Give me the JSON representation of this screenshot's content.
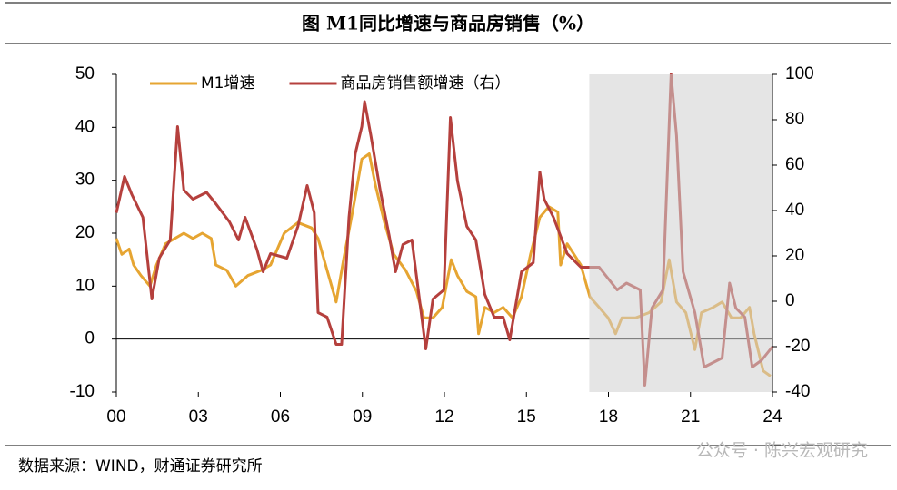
{
  "chart_data": {
    "type": "line",
    "title": "图  M1同比增速与商品房销售（%）",
    "source": "数据来源：WIND，财通证券研究所",
    "watermark": "公众号 · 陈兴宏观研究",
    "xlim": [
      2000,
      2024
    ],
    "xticks": [
      {
        "value": 2000,
        "label": "00"
      },
      {
        "value": 2003,
        "label": "03"
      },
      {
        "value": 2006,
        "label": "06"
      },
      {
        "value": 2009,
        "label": "09"
      },
      {
        "value": 2012,
        "label": "12"
      },
      {
        "value": 2015,
        "label": "15"
      },
      {
        "value": 2018,
        "label": "18"
      },
      {
        "value": 2021,
        "label": "21"
      },
      {
        "value": 2024,
        "label": "24"
      }
    ],
    "ylim": [
      -10,
      50
    ],
    "yticks": [
      -10,
      0,
      10,
      20,
      30,
      40,
      50
    ],
    "y2lim": [
      -40,
      100
    ],
    "y2ticks": [
      -40,
      -20,
      0,
      20,
      40,
      60,
      80,
      100
    ],
    "shaded_x": [
      2017.3,
      2024
    ],
    "legend": "top-left",
    "series": [
      {
        "name": "M1增速",
        "color": "#e6a532",
        "x": [
          2000,
          2000.2,
          2000.47,
          2000.63,
          2000.9,
          2001.23,
          2001.47,
          2001.8,
          2002.14,
          2002.47,
          2002.8,
          2003.14,
          2003.47,
          2003.64,
          2004.04,
          2004.37,
          2004.81,
          2005.31,
          2005.64,
          2006.14,
          2006.64,
          2007.14,
          2007.38,
          2007.71,
          2008.04,
          2008.31,
          2008.71,
          2008.98,
          2009.25,
          2009.48,
          2009.81,
          2010.15,
          2010.58,
          2010.98,
          2011.25,
          2011.58,
          2011.92,
          2012.25,
          2012.48,
          2012.82,
          2013.15,
          2013.25,
          2013.48,
          2013.82,
          2014.15,
          2014.49,
          2014.82,
          2015.15,
          2015.49,
          2015.82,
          2016.15,
          2016.25,
          2016.49,
          2016.99,
          2017.32,
          2017.66,
          2017.99,
          2018.26,
          2018.49,
          2018.99,
          2019.49,
          2019.92,
          2020.22,
          2020.49,
          2020.83,
          2021.16,
          2021.4,
          2021.83,
          2022.16,
          2022.5,
          2022.83,
          2023.16,
          2023.33,
          2023.66,
          2023.93
        ],
        "values": [
          19,
          16,
          17,
          14,
          12,
          10,
          14,
          18,
          19,
          20,
          19,
          20,
          19,
          14,
          13,
          10,
          12,
          13,
          14,
          20,
          22,
          21,
          19,
          13,
          7,
          15,
          26,
          34,
          35,
          29,
          22,
          16,
          13,
          9,
          4,
          4,
          6,
          15,
          12,
          9,
          8,
          1,
          6,
          5,
          6,
          4,
          8,
          16,
          23,
          25,
          24,
          14,
          18,
          14,
          8,
          6,
          4,
          1,
          4,
          4,
          5,
          7,
          15,
          7,
          5,
          -2,
          5,
          6,
          7,
          4,
          4,
          6,
          1,
          -6,
          -7
        ]
      },
      {
        "name": "商品房销售额增速（右）",
        "color": "#b5403d",
        "axis": "y2",
        "x": [
          2000,
          2000.3,
          2000.57,
          2000.97,
          2001.3,
          2001.57,
          2001.97,
          2002.24,
          2002.47,
          2002.8,
          2003.3,
          2003.64,
          2004.14,
          2004.47,
          2004.71,
          2005.14,
          2005.37,
          2005.64,
          2006.24,
          2006.64,
          2006.98,
          2007.24,
          2007.38,
          2007.71,
          2008.04,
          2008.24,
          2008.51,
          2008.74,
          2008.98,
          2009.08,
          2009.31,
          2009.65,
          2009.98,
          2010.21,
          2010.48,
          2010.81,
          2010.98,
          2011.32,
          2011.58,
          2011.98,
          2012.22,
          2012.48,
          2012.82,
          2013.15,
          2013.48,
          2013.82,
          2014.15,
          2014.39,
          2014.82,
          2015.25,
          2015.49,
          2015.65,
          2015.99,
          2016.49,
          2016.99,
          2017.66,
          2018.32,
          2018.66,
          2019.16,
          2019.33,
          2019.59,
          2019.99,
          2020.29,
          2020.49,
          2020.73,
          2021.16,
          2021.5,
          2021.83,
          2022.16,
          2022.43,
          2022.66,
          2022.99,
          2023.26,
          2023.6,
          2024
        ],
        "values": [
          39,
          55,
          47,
          37,
          1,
          19,
          27,
          77,
          49,
          45,
          48,
          43,
          35,
          27,
          37,
          23,
          13,
          21,
          19,
          33,
          51,
          39,
          -5,
          -7,
          -19,
          -19,
          37,
          65,
          77,
          88,
          73,
          49,
          29,
          13,
          25,
          27,
          11,
          -21,
          1,
          5,
          81,
          53,
          33,
          27,
          3,
          -7,
          -7,
          -17,
          13,
          17,
          57,
          45,
          37,
          21,
          15,
          15,
          5,
          8,
          5,
          -37,
          -3,
          5,
          100,
          73,
          13,
          -5,
          -29,
          -27,
          -25,
          8,
          -3,
          -7,
          -29,
          -26,
          -20
        ]
      }
    ]
  }
}
